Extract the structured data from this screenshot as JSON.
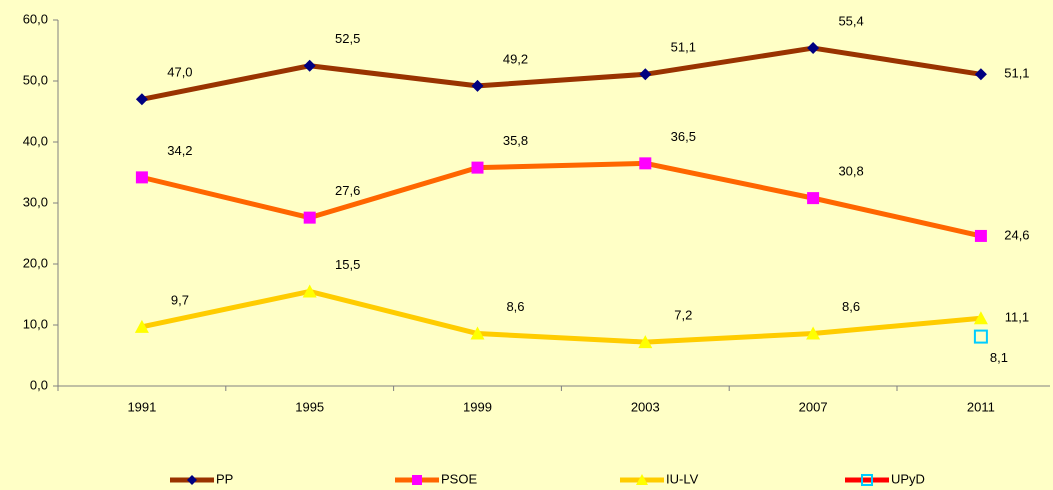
{
  "chart_data": {
    "type": "line",
    "categories": [
      "1991",
      "1995",
      "1999",
      "2003",
      "2007",
      "2011"
    ],
    "ylim": [
      0,
      60
    ],
    "yticks": [
      {
        "value": 0,
        "label": "0,0"
      },
      {
        "value": 10,
        "label": "10,0"
      },
      {
        "value": 20,
        "label": "20,0"
      },
      {
        "value": 30,
        "label": "30,0"
      },
      {
        "value": 40,
        "label": "40,0"
      },
      {
        "value": 50,
        "label": "50,0"
      },
      {
        "value": 60,
        "label": "60,0"
      }
    ],
    "grid": false,
    "legend": "bottom",
    "series": [
      {
        "name": "PP",
        "color": "#993300",
        "marker": "diamond",
        "marker_color": "#000080",
        "values": [
          47.0,
          52.5,
          49.2,
          51.1,
          55.4,
          51.1
        ],
        "value_labels": [
          "47,0",
          "52,5",
          "49,2",
          "51,1",
          "55,4",
          "51,1"
        ]
      },
      {
        "name": "PSOE",
        "color": "#FF6600",
        "marker": "square",
        "marker_color": "#FF00FF",
        "values": [
          34.2,
          27.6,
          35.8,
          36.5,
          30.8,
          24.6
        ],
        "value_labels": [
          "34,2",
          "27,6",
          "35,8",
          "36,5",
          "30,8",
          "24,6"
        ]
      },
      {
        "name": "IU-LV",
        "color": "#FFCC00",
        "marker": "triangle",
        "marker_color": "#FFFF00",
        "values": [
          9.7,
          15.5,
          8.6,
          7.2,
          8.6,
          11.1
        ],
        "value_labels": [
          "9,7",
          "15,5",
          "8,6",
          "7,2",
          "8,6",
          "11,1"
        ]
      },
      {
        "name": "UPyD",
        "color": "#FF0000",
        "marker": "hollow-square",
        "marker_color": "#00CCFF",
        "values": [
          null,
          null,
          null,
          null,
          null,
          8.1
        ],
        "value_labels": [
          null,
          null,
          null,
          null,
          null,
          "8,1"
        ]
      }
    ]
  }
}
